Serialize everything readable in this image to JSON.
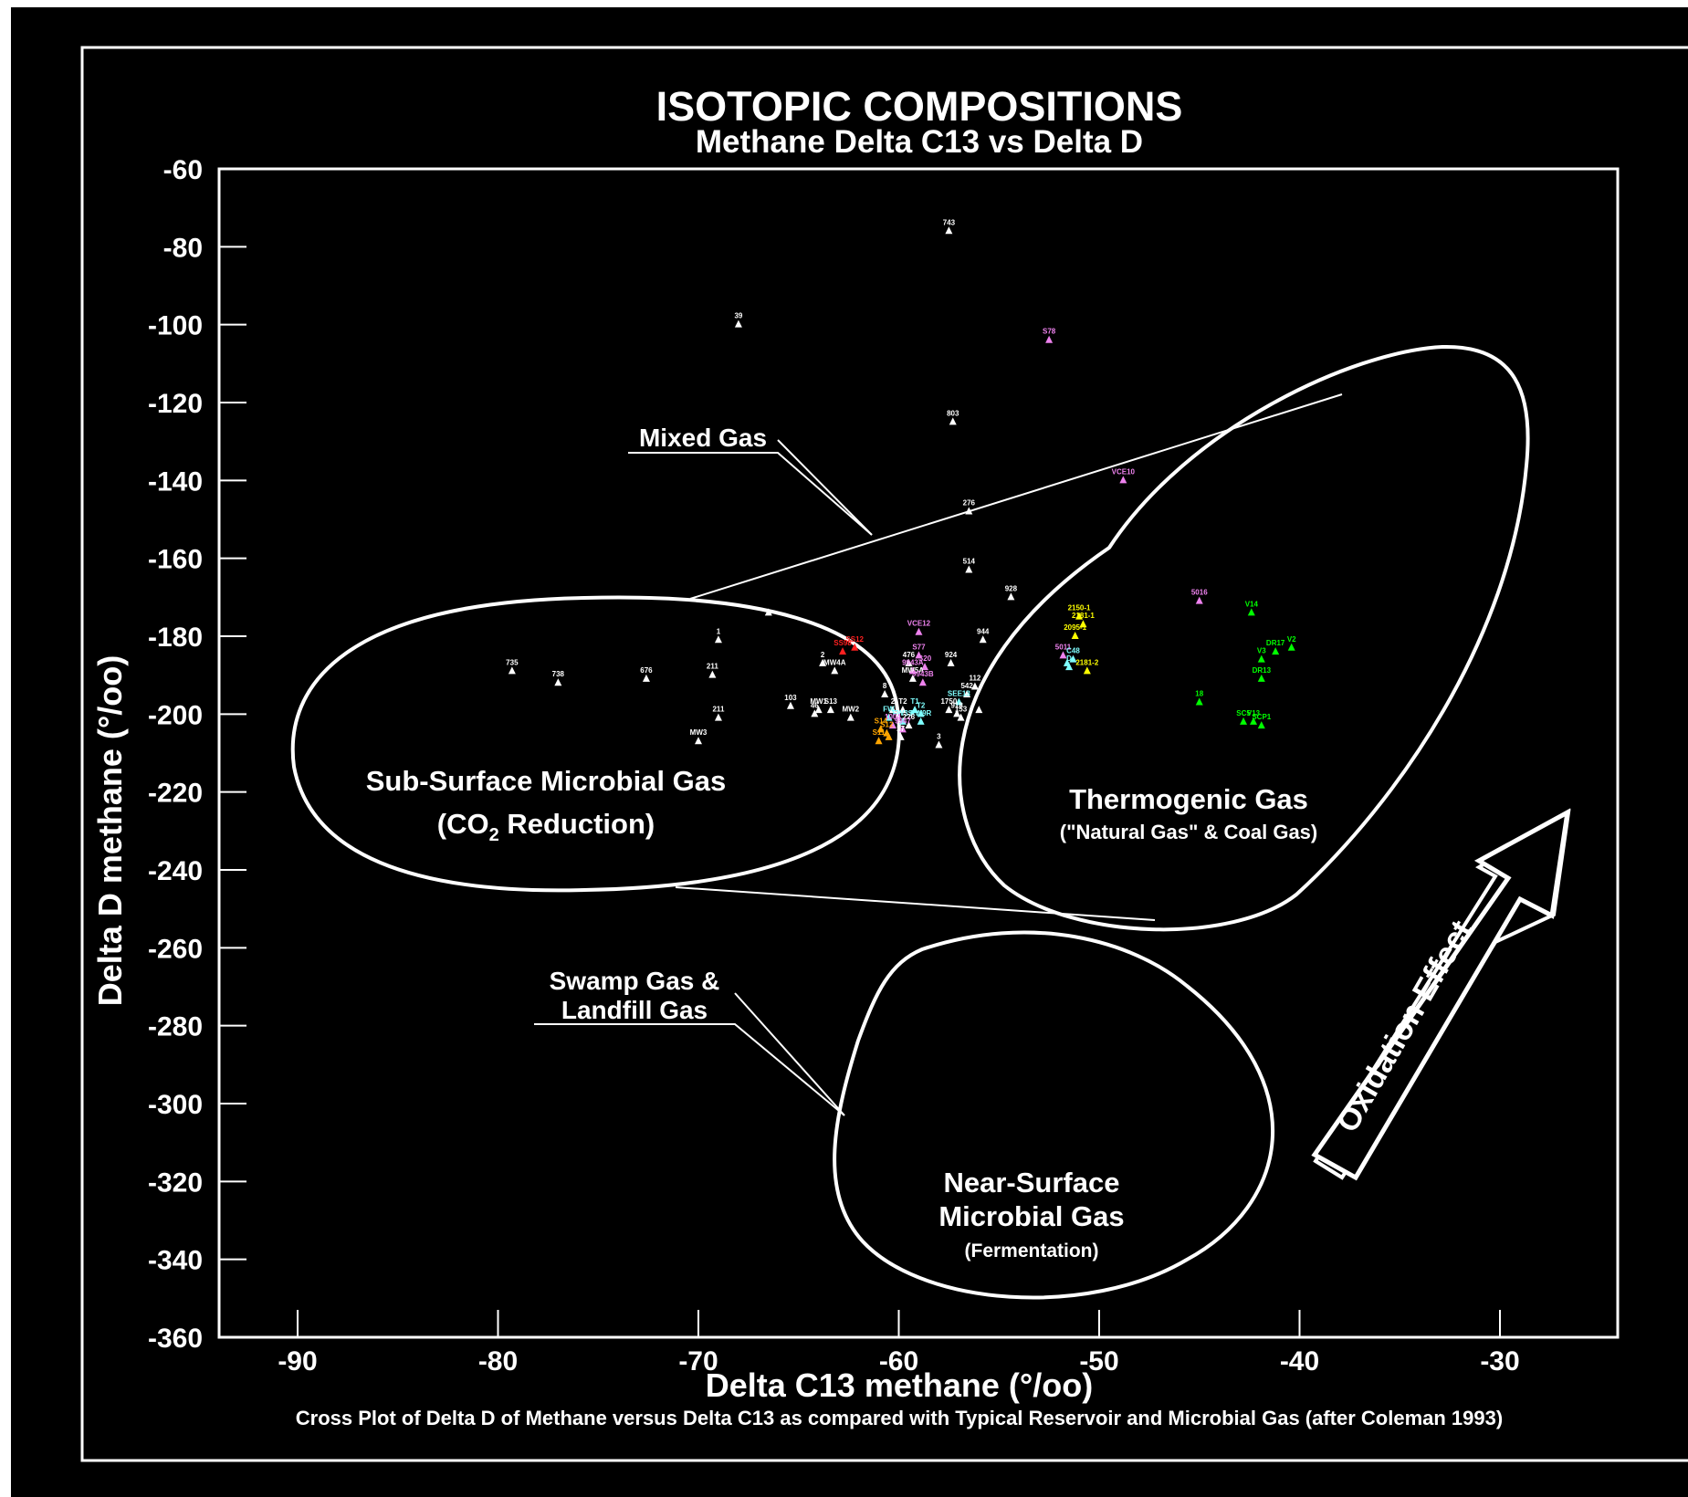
{
  "chart_data": {
    "type": "scatter",
    "title": "ISOTOPIC  COMPOSITIONS",
    "subtitle": "Methane  Delta  C13  vs  Delta  D",
    "xlabel": "Delta  C13  methane",
    "ylabel": "Delta  D  methane",
    "xlabel_unit": "(°/oo)",
    "ylabel_unit": "(°/oo)",
    "caption": "Cross Plot of Delta D of Methane versus Delta C13 as compared with Typical Reservoir and Microbial Gas (after Coleman 1993)",
    "xlim": [
      -94,
      -24
    ],
    "ylim": [
      -360,
      -60
    ],
    "x_ticks": [
      -90,
      -80,
      -70,
      -60,
      -50,
      -40,
      -30
    ],
    "x_tick_labels": [
      "-90",
      "-80",
      "-70",
      "-60",
      "-50",
      "-40",
      "-30"
    ],
    "y_ticks": [
      -60,
      -80,
      -100,
      -120,
      -140,
      -160,
      -180,
      -200,
      -220,
      -240,
      -260,
      -280,
      -300,
      -320,
      -340,
      -360
    ],
    "y_tick_labels": [
      "-60",
      "-80",
      "-100",
      "-120",
      "-140",
      "-160",
      "-180",
      "-200",
      "-220",
      "-240",
      "-260",
      "-280",
      "-300",
      "-320",
      "-340",
      "-360"
    ],
    "grid": false,
    "background": "#000000",
    "foreground": "#ffffff",
    "marker": "triangle",
    "colors": {
      "white": "#ffffff",
      "violet": "#ee82ee",
      "yellow": "#ffff00",
      "green": "#00ff00",
      "cyan": "#7fffff",
      "orange": "#ffa500",
      "red": "#ff2020"
    },
    "regions": [
      {
        "name": "sub-surface",
        "label": "Sub-Surface Microbial Gas",
        "sublabel": "(CO2  Reduction)",
        "sublabel_main": "(CO",
        "sublabel_sub": "2",
        "sublabel_rest": "   Reduction)"
      },
      {
        "name": "thermogenic",
        "label": "Thermogenic  Gas",
        "sublabel": "(\"Natural Gas\" & Coal Gas)"
      },
      {
        "name": "near-surface",
        "label_line1": "Near-Surface",
        "label_line2": "Microbial Gas",
        "sublabel": "(Fermentation)"
      },
      {
        "name": "mixed",
        "label": "Mixed Gas"
      },
      {
        "name": "swamp",
        "label_line1": "Swamp Gas &",
        "label_line2": "Landfill Gas"
      }
    ],
    "arrow_label": "Oxidation  Effect",
    "points": [
      {
        "x": -57.5,
        "y": -76,
        "label": "743",
        "color": "white"
      },
      {
        "x": -68.0,
        "y": -100,
        "label": "39",
        "color": "white"
      },
      {
        "x": -52.5,
        "y": -104,
        "label": "S78",
        "color": "violet"
      },
      {
        "x": -57.3,
        "y": -125,
        "label": "803",
        "color": "white"
      },
      {
        "x": -48.8,
        "y": -140,
        "label": "VCE10",
        "color": "violet"
      },
      {
        "x": -56.5,
        "y": -148,
        "label": "276",
        "color": "white"
      },
      {
        "x": -56.5,
        "y": -163,
        "label": "514",
        "color": "white"
      },
      {
        "x": -54.4,
        "y": -170,
        "label": "928",
        "color": "white"
      },
      {
        "x": -66.5,
        "y": -174,
        "label": "",
        "color": "white"
      },
      {
        "x": -45.0,
        "y": -171,
        "label": "5016",
        "color": "violet"
      },
      {
        "x": -42.4,
        "y": -174,
        "label": "V14",
        "color": "green"
      },
      {
        "x": -51.0,
        "y": -175,
        "label": "2150-1",
        "color": "yellow"
      },
      {
        "x": -50.8,
        "y": -177,
        "label": "2181-1",
        "color": "yellow"
      },
      {
        "x": -51.2,
        "y": -180,
        "label": "2095-1",
        "color": "yellow"
      },
      {
        "x": -59.0,
        "y": -179,
        "label": "VCE12",
        "color": "violet"
      },
      {
        "x": -55.8,
        "y": -181,
        "label": "944",
        "color": "white"
      },
      {
        "x": -69.0,
        "y": -181,
        "label": "1",
        "color": "white"
      },
      {
        "x": -62.2,
        "y": -183,
        "label": "SS12",
        "color": "red"
      },
      {
        "x": -62.8,
        "y": -184,
        "label": "SS98",
        "color": "red"
      },
      {
        "x": -51.8,
        "y": -185,
        "label": "5011",
        "color": "violet"
      },
      {
        "x": -51.3,
        "y": -186,
        "label": "C48",
        "color": "cyan"
      },
      {
        "x": -51.6,
        "y": -187,
        "label": "",
        "color": "cyan"
      },
      {
        "x": -41.2,
        "y": -184,
        "label": "DR17",
        "color": "green"
      },
      {
        "x": -40.4,
        "y": -183,
        "label": "V2",
        "color": "green"
      },
      {
        "x": -41.9,
        "y": -186,
        "label": "V3",
        "color": "green"
      },
      {
        "x": -59.0,
        "y": -185,
        "label": "S77",
        "color": "violet"
      },
      {
        "x": -59.5,
        "y": -187,
        "label": "476",
        "color": "white"
      },
      {
        "x": -57.4,
        "y": -187,
        "label": "924",
        "color": "white"
      },
      {
        "x": -63.8,
        "y": -187,
        "label": "2",
        "color": "white"
      },
      {
        "x": -63.2,
        "y": -189,
        "label": "MW4A",
        "color": "white"
      },
      {
        "x": -58.7,
        "y": -188,
        "label": "S20",
        "color": "violet"
      },
      {
        "x": -59.3,
        "y": -189,
        "label": "9943A",
        "color": "violet"
      },
      {
        "x": -51.5,
        "y": -188,
        "label": "D",
        "color": "cyan"
      },
      {
        "x": -50.6,
        "y": -189,
        "label": "2181-2",
        "color": "yellow"
      },
      {
        "x": -79.3,
        "y": -189,
        "label": "735",
        "color": "white"
      },
      {
        "x": -69.3,
        "y": -190,
        "label": "211",
        "color": "white"
      },
      {
        "x": -72.6,
        "y": -191,
        "label": "676",
        "color": "white"
      },
      {
        "x": -77.0,
        "y": -192,
        "label": "738",
        "color": "white"
      },
      {
        "x": -59.3,
        "y": -191,
        "label": "MW5A",
        "color": "white"
      },
      {
        "x": -58.8,
        "y": -192,
        "label": "9943B",
        "color": "violet"
      },
      {
        "x": -41.9,
        "y": -191,
        "label": "DR13",
        "color": "green"
      },
      {
        "x": -56.2,
        "y": -193,
        "label": "112",
        "color": "white"
      },
      {
        "x": -60.7,
        "y": -195,
        "label": "8",
        "color": "white"
      },
      {
        "x": -56.6,
        "y": -195,
        "label": "542",
        "color": "white"
      },
      {
        "x": -57.0,
        "y": -197,
        "label": "SEE13",
        "color": "cyan"
      },
      {
        "x": -65.4,
        "y": -198,
        "label": "103",
        "color": "white"
      },
      {
        "x": -45.0,
        "y": -197,
        "label": "18",
        "color": "green"
      },
      {
        "x": -64.0,
        "y": -199,
        "label": "MW1",
        "color": "white"
      },
      {
        "x": -63.4,
        "y": -199,
        "label": "S13",
        "color": "white"
      },
      {
        "x": -60.3,
        "y": -199,
        "label": "2",
        "color": "white"
      },
      {
        "x": -59.8,
        "y": -199,
        "label": "T2",
        "color": "white"
      },
      {
        "x": -59.2,
        "y": -199,
        "label": "T1",
        "color": "cyan"
      },
      {
        "x": -58.9,
        "y": -200,
        "label": "T2",
        "color": "cyan"
      },
      {
        "x": -57.5,
        "y": -199,
        "label": "1750",
        "color": "white"
      },
      {
        "x": -56.0,
        "y": -199,
        "label": "",
        "color": "white"
      },
      {
        "x": -62.4,
        "y": -201,
        "label": "MW2",
        "color": "white"
      },
      {
        "x": -64.2,
        "y": -200,
        "label": "46",
        "color": "white"
      },
      {
        "x": -69.0,
        "y": -201,
        "label": "211",
        "color": "white"
      },
      {
        "x": -60.5,
        "y": -201,
        "label": "FW",
        "color": "cyan"
      },
      {
        "x": -59.8,
        "y": -202,
        "label": "FW3S",
        "color": "cyan"
      },
      {
        "x": -58.9,
        "y": -202,
        "label": "RW9R",
        "color": "cyan"
      },
      {
        "x": -57.1,
        "y": -200,
        "label": "918",
        "color": "white"
      },
      {
        "x": -56.9,
        "y": -201,
        "label": "153",
        "color": "white"
      },
      {
        "x": -42.8,
        "y": -202,
        "label": "SC5",
        "color": "green"
      },
      {
        "x": -42.3,
        "y": -202,
        "label": "V13",
        "color": "green"
      },
      {
        "x": -41.9,
        "y": -203,
        "label": "SCP1",
        "color": "green"
      },
      {
        "x": -60.3,
        "y": -203,
        "label": "1004",
        "color": "violet"
      },
      {
        "x": -59.5,
        "y": -203,
        "label": "226",
        "color": "white"
      },
      {
        "x": -60.9,
        "y": -204,
        "label": "S14",
        "color": "orange"
      },
      {
        "x": -59.8,
        "y": -204,
        "label": "9947",
        "color": "violet"
      },
      {
        "x": -60.6,
        "y": -205,
        "label": "S12",
        "color": "orange"
      },
      {
        "x": -60.5,
        "y": -206,
        "label": "",
        "color": "orange"
      },
      {
        "x": -59.9,
        "y": -206,
        "label": "27",
        "color": "white"
      },
      {
        "x": -61.0,
        "y": -207,
        "label": "S11",
        "color": "orange"
      },
      {
        "x": -70.0,
        "y": -207,
        "label": "MW3",
        "color": "white"
      },
      {
        "x": -58.0,
        "y": -208,
        "label": "3",
        "color": "white"
      }
    ]
  }
}
